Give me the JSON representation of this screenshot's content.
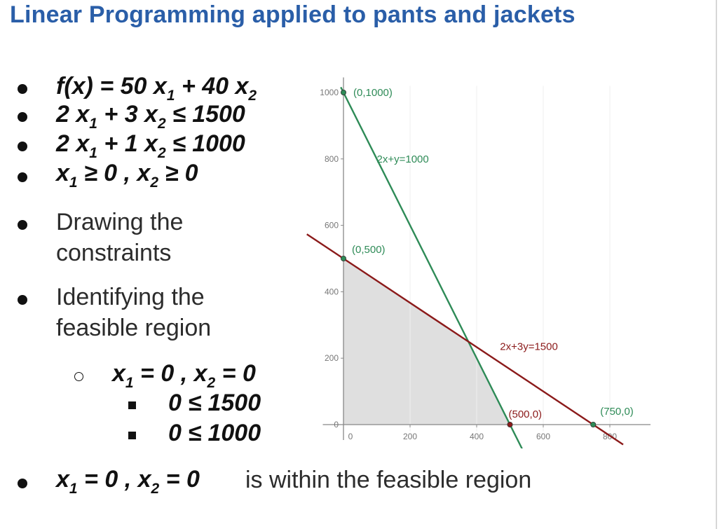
{
  "slide": {
    "title": "Linear Programming applied to pants and jackets"
  },
  "bullets": {
    "objective": "f(x) = 50 x1 + 40 x2",
    "constraint_1": "2 x1 + 3 x2 ≤ 1500",
    "constraint_2": "2 x1 + 1 x2 ≤ 1000",
    "nonnegativity": "x1 ≥ 0 , x2 ≥ 0",
    "drawing": "Drawing the constraints",
    "identifying": "Identifying the feasible region",
    "test_point": "x1 = 0 , x2 = 0",
    "test_1": "0 ≤ 1500",
    "test_2": "0 ≤ 1000",
    "conclusion_point": "x1 = 0 , x2 = 0",
    "conclusion_text": "is within the feasible region"
  },
  "chart_data": {
    "type": "line",
    "xlim": [
      -20,
      840
    ],
    "ylim": [
      -20,
      1020
    ],
    "x_ticks": [
      0,
      200,
      400,
      600,
      800
    ],
    "y_ticks": [
      0,
      200,
      400,
      600,
      800,
      1000
    ],
    "grid": false,
    "lines": [
      {
        "label": "2x+y=1000",
        "points": [
          [
            0,
            1000
          ],
          [
            500,
            0
          ]
        ],
        "color": "#2e8b57"
      },
      {
        "label": "2x+3y=1500",
        "points": [
          [
            0,
            500
          ],
          [
            750,
            0
          ]
        ],
        "color": "#8b1a1a"
      }
    ],
    "feasible_region": [
      [
        0,
        0
      ],
      [
        0,
        500
      ],
      [
        375,
        250
      ],
      [
        500,
        0
      ]
    ],
    "points": [
      {
        "label": "(0,1000)",
        "x": 0,
        "y": 1000,
        "color": "#2e8b57"
      },
      {
        "label": "(0,500)",
        "x": 0,
        "y": 500,
        "color": "#2e8b57"
      },
      {
        "label": "(500,0)",
        "x": 500,
        "y": 0,
        "color": "#8b1a1a"
      },
      {
        "label": "(750,0)",
        "x": 750,
        "y": 0,
        "color": "#2e8b57"
      }
    ]
  }
}
